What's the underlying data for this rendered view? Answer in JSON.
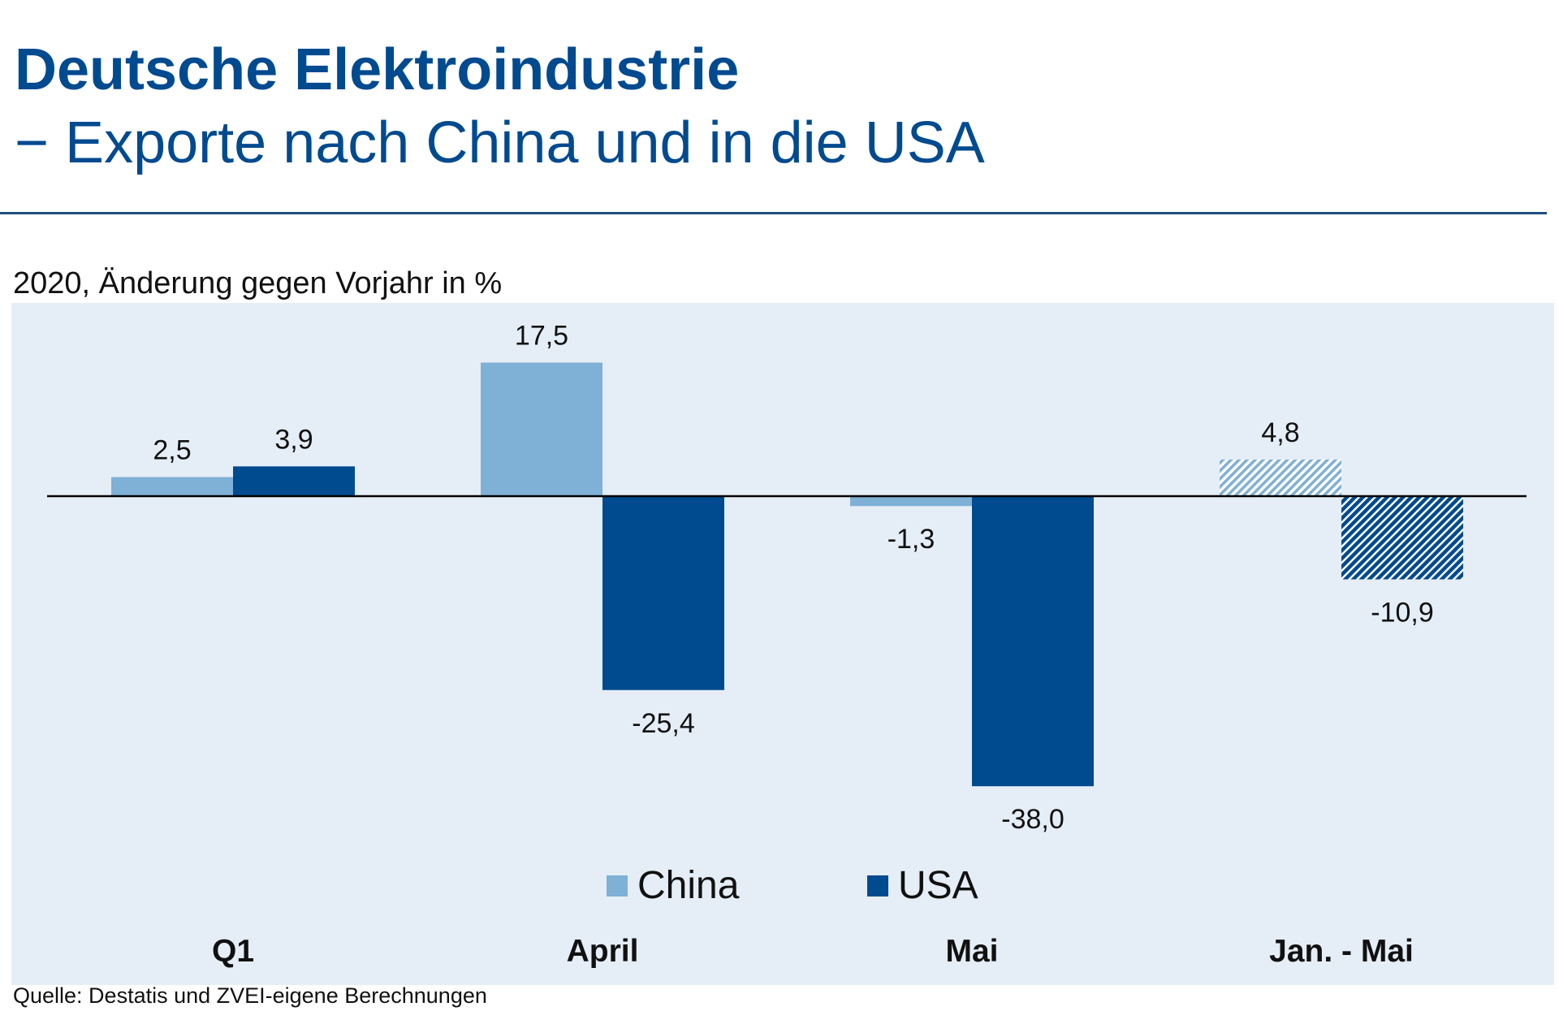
{
  "header": {
    "title": "Deutsche Elektroindustrie",
    "subtitle": "− Exporte nach China und in die USA"
  },
  "unit_label": "2020, Änderung gegen Vorjahr in %",
  "source": "Quelle: Destatis und ZVEI-eigene Berechnungen",
  "colors": {
    "china": "#7fb0d6",
    "usa": "#004a8f",
    "plot_bg": "#e5eef6",
    "title": "#004a8f"
  },
  "chart_data": {
    "type": "bar",
    "title": "",
    "xlabel": "",
    "ylabel": "",
    "categories": [
      "Q1",
      "April",
      "Mai",
      "Jan. - Mai"
    ],
    "series": [
      {
        "name": "China",
        "values": [
          2.5,
          17.5,
          -1.3,
          4.8
        ],
        "labels": [
          "2,5",
          "17,5",
          "-1,3",
          "4,8"
        ]
      },
      {
        "name": "USA",
        "values": [
          3.9,
          -25.4,
          -38.0,
          -10.9
        ],
        "labels": [
          "3,9",
          "-25,4",
          "-38,0",
          "-10,9"
        ]
      }
    ],
    "hatched_categories": [
      "Jan. - Mai"
    ],
    "ylim": [
      -48,
      24
    ],
    "grid": false,
    "legend_position": "bottom-center"
  }
}
